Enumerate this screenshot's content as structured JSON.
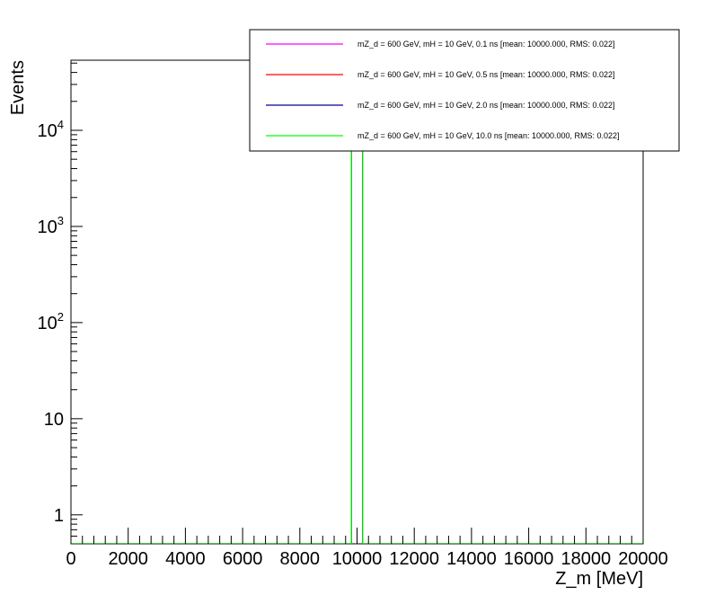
{
  "chart_data": {
    "type": "histogram",
    "xlabel": "Z_m [MeV]",
    "ylabel": "Events",
    "bins": [
      0,
      9800,
      10200,
      20000
    ],
    "series": [
      {
        "name": "mZ_d = 600 GeV, mH = 10 GeV, 0.1 ns [mean: 10000.000, RMS: 0.022]",
        "color": "#ff00ff",
        "values": [
          0,
          20000,
          0
        ]
      },
      {
        "name": "mZ_d = 600 GeV, mH = 10 GeV, 0.5 ns [mean: 10000.000, RMS: 0.022]",
        "color": "#ff0000",
        "values": [
          0,
          20000,
          0
        ]
      },
      {
        "name": "mZ_d = 600 GeV, mH = 10 GeV, 2.0 ns [mean: 10000.000, RMS: 0.022]",
        "color": "#000099",
        "values": [
          0,
          20000,
          0
        ]
      },
      {
        "name": "mZ_d = 600 GeV, mH = 10 GeV, 10.0 ns [mean: 10000.000, RMS: 0.022]",
        "color": "#00ff00",
        "values": [
          0,
          20000,
          0
        ]
      }
    ],
    "xlim": [
      0,
      20000
    ],
    "xticks": [
      0,
      2000,
      4000,
      6000,
      8000,
      10000,
      12000,
      14000,
      16000,
      18000,
      20000
    ],
    "ylim": [
      0.5,
      53600
    ],
    "ylog": true,
    "yticks": [
      1,
      10,
      {
        "value": 100,
        "label": "10",
        "exp": "2"
      },
      {
        "value": 1000,
        "label": "10",
        "exp": "3"
      },
      {
        "value": 10000,
        "label": "10",
        "exp": "4"
      }
    ],
    "legend": "top-right"
  }
}
